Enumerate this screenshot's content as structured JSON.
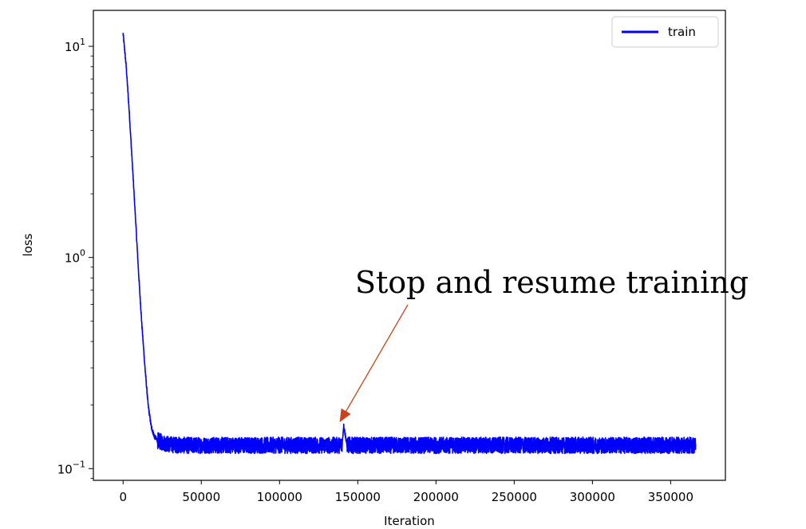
{
  "chart_data": {
    "type": "line",
    "xlabel": "Iteration",
    "ylabel": "loss",
    "y_scale": "log",
    "xlim": [
      -19000,
      385000
    ],
    "ylim": [
      0.088,
      14.8
    ],
    "x_ticks": [
      0,
      50000,
      100000,
      150000,
      200000,
      250000,
      300000,
      350000
    ],
    "x_tick_labels": [
      "0",
      "50000",
      "100000",
      "150000",
      "200000",
      "250000",
      "300000",
      "350000"
    ],
    "y_ticks": [
      0.1,
      1,
      10
    ],
    "y_tick_labels": [
      {
        "base": "10",
        "exp": "−1"
      },
      {
        "base": "10",
        "exp": "0"
      },
      {
        "base": "10",
        "exp": "1"
      }
    ],
    "grid": false,
    "legend": {
      "position": "top-right",
      "entries": [
        "train"
      ]
    },
    "series": [
      {
        "name": "train",
        "color": "#0000ff",
        "noise_band": [
          0.118,
          0.141
        ],
        "x": [
          0,
          2000,
          4000,
          6000,
          8000,
          10000,
          12000,
          14000,
          16000,
          18000,
          20000,
          22000,
          25000,
          30000,
          40000,
          60000,
          80000,
          100000,
          120000,
          140000,
          141000,
          142000,
          143000,
          145000,
          160000,
          200000,
          250000,
          300000,
          350000,
          366000
        ],
        "y": [
          11.5,
          8.0,
          4.8,
          2.7,
          1.5,
          0.82,
          0.48,
          0.3,
          0.2,
          0.158,
          0.142,
          0.136,
          0.133,
          0.13,
          0.129,
          0.129,
          0.129,
          0.129,
          0.129,
          0.129,
          0.16,
          0.145,
          0.13,
          0.129,
          0.129,
          0.129,
          0.129,
          0.129,
          0.129,
          0.129
        ]
      }
    ],
    "annotations": [
      {
        "text": "Stop and resume training",
        "xy": [
          141500,
          0.168
        ],
        "arrow_color": "#c9441c"
      }
    ]
  }
}
